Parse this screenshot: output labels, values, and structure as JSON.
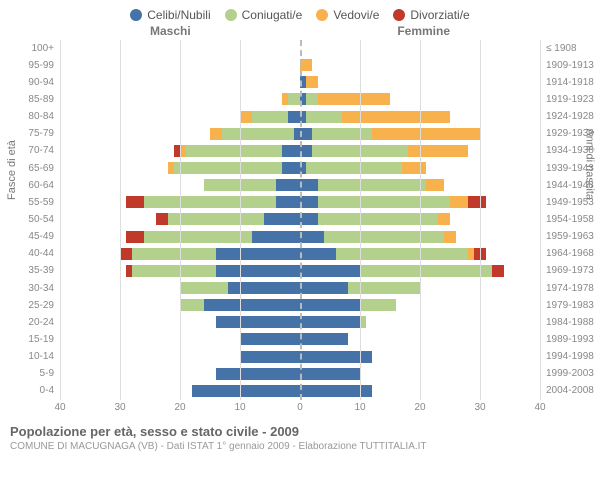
{
  "legend": [
    {
      "label": "Celibi/Nubili",
      "color": "#4573a7"
    },
    {
      "label": "Coniugati/e",
      "color": "#b3d18c"
    },
    {
      "label": "Vedovi/e",
      "color": "#f7b24e"
    },
    {
      "label": "Divorziati/e",
      "color": "#c0392b"
    }
  ],
  "side_titles": {
    "left": "Maschi",
    "right": "Femmine"
  },
  "axis_titles": {
    "left": "Fasce di età",
    "right": "Anni di nascita"
  },
  "x": {
    "max": 40,
    "ticks": [
      40,
      30,
      20,
      10,
      0,
      10,
      20,
      30,
      40
    ]
  },
  "colors": {
    "celibi": "#4573a7",
    "coniugati": "#b3d18c",
    "vedovi": "#f7b24e",
    "divorziati": "#c0392b",
    "grid": "#ddd",
    "center": "#bbb"
  },
  "age_groups": [
    {
      "age": "100+",
      "birth": "≤ 1908",
      "m": {
        "c": 0,
        "co": 0,
        "v": 0,
        "d": 0
      },
      "f": {
        "c": 0,
        "co": 0,
        "v": 0,
        "d": 0
      }
    },
    {
      "age": "95-99",
      "birth": "1909-1913",
      "m": {
        "c": 0,
        "co": 0,
        "v": 0,
        "d": 0
      },
      "f": {
        "c": 0,
        "co": 0,
        "v": 2,
        "d": 0
      }
    },
    {
      "age": "90-94",
      "birth": "1914-1918",
      "m": {
        "c": 0,
        "co": 0,
        "v": 0,
        "d": 0
      },
      "f": {
        "c": 1,
        "co": 0,
        "v": 2,
        "d": 0
      }
    },
    {
      "age": "85-89",
      "birth": "1919-1923",
      "m": {
        "c": 0,
        "co": 2,
        "v": 1,
        "d": 0
      },
      "f": {
        "c": 1,
        "co": 2,
        "v": 12,
        "d": 0
      }
    },
    {
      "age": "80-84",
      "birth": "1924-1928",
      "m": {
        "c": 2,
        "co": 6,
        "v": 2,
        "d": 0
      },
      "f": {
        "c": 1,
        "co": 6,
        "v": 18,
        "d": 0
      }
    },
    {
      "age": "75-79",
      "birth": "1929-1933",
      "m": {
        "c": 1,
        "co": 12,
        "v": 2,
        "d": 0
      },
      "f": {
        "c": 2,
        "co": 10,
        "v": 18,
        "d": 0
      }
    },
    {
      "age": "70-74",
      "birth": "1934-1938",
      "m": {
        "c": 3,
        "co": 16,
        "v": 1,
        "d": 1
      },
      "f": {
        "c": 2,
        "co": 16,
        "v": 10,
        "d": 0
      }
    },
    {
      "age": "65-69",
      "birth": "1939-1943",
      "m": {
        "c": 3,
        "co": 18,
        "v": 1,
        "d": 0
      },
      "f": {
        "c": 1,
        "co": 16,
        "v": 4,
        "d": 0
      }
    },
    {
      "age": "60-64",
      "birth": "1944-1948",
      "m": {
        "c": 4,
        "co": 12,
        "v": 0,
        "d": 0
      },
      "f": {
        "c": 3,
        "co": 18,
        "v": 3,
        "d": 0
      }
    },
    {
      "age": "55-59",
      "birth": "1949-1953",
      "m": {
        "c": 4,
        "co": 22,
        "v": 0,
        "d": 3
      },
      "f": {
        "c": 3,
        "co": 22,
        "v": 3,
        "d": 3
      }
    },
    {
      "age": "50-54",
      "birth": "1954-1958",
      "m": {
        "c": 6,
        "co": 16,
        "v": 0,
        "d": 2
      },
      "f": {
        "c": 3,
        "co": 20,
        "v": 2,
        "d": 0
      }
    },
    {
      "age": "45-49",
      "birth": "1959-1963",
      "m": {
        "c": 8,
        "co": 18,
        "v": 0,
        "d": 3
      },
      "f": {
        "c": 4,
        "co": 20,
        "v": 2,
        "d": 0
      }
    },
    {
      "age": "40-44",
      "birth": "1964-1968",
      "m": {
        "c": 14,
        "co": 14,
        "v": 0,
        "d": 2
      },
      "f": {
        "c": 6,
        "co": 22,
        "v": 1,
        "d": 2
      }
    },
    {
      "age": "35-39",
      "birth": "1969-1973",
      "m": {
        "c": 14,
        "co": 14,
        "v": 0,
        "d": 1
      },
      "f": {
        "c": 10,
        "co": 22,
        "v": 0,
        "d": 2
      }
    },
    {
      "age": "30-34",
      "birth": "1974-1978",
      "m": {
        "c": 12,
        "co": 8,
        "v": 0,
        "d": 0
      },
      "f": {
        "c": 8,
        "co": 12,
        "v": 0,
        "d": 0
      }
    },
    {
      "age": "25-29",
      "birth": "1979-1983",
      "m": {
        "c": 16,
        "co": 4,
        "v": 0,
        "d": 0
      },
      "f": {
        "c": 10,
        "co": 6,
        "v": 0,
        "d": 0
      }
    },
    {
      "age": "20-24",
      "birth": "1984-1988",
      "m": {
        "c": 14,
        "co": 0,
        "v": 0,
        "d": 0
      },
      "f": {
        "c": 10,
        "co": 1,
        "v": 0,
        "d": 0
      }
    },
    {
      "age": "15-19",
      "birth": "1989-1993",
      "m": {
        "c": 10,
        "co": 0,
        "v": 0,
        "d": 0
      },
      "f": {
        "c": 8,
        "co": 0,
        "v": 0,
        "d": 0
      }
    },
    {
      "age": "10-14",
      "birth": "1994-1998",
      "m": {
        "c": 10,
        "co": 0,
        "v": 0,
        "d": 0
      },
      "f": {
        "c": 12,
        "co": 0,
        "v": 0,
        "d": 0
      }
    },
    {
      "age": "5-9",
      "birth": "1999-2003",
      "m": {
        "c": 14,
        "co": 0,
        "v": 0,
        "d": 0
      },
      "f": {
        "c": 10,
        "co": 0,
        "v": 0,
        "d": 0
      }
    },
    {
      "age": "0-4",
      "birth": "2004-2008",
      "m": {
        "c": 18,
        "co": 0,
        "v": 0,
        "d": 0
      },
      "f": {
        "c": 12,
        "co": 0,
        "v": 0,
        "d": 0
      }
    }
  ],
  "footer": {
    "title": "Popolazione per età, sesso e stato civile - 2009",
    "sub": "COMUNE DI MACUGNAGA (VB) - Dati ISTAT 1° gennaio 2009 - Elaborazione TUTTITALIA.IT"
  }
}
